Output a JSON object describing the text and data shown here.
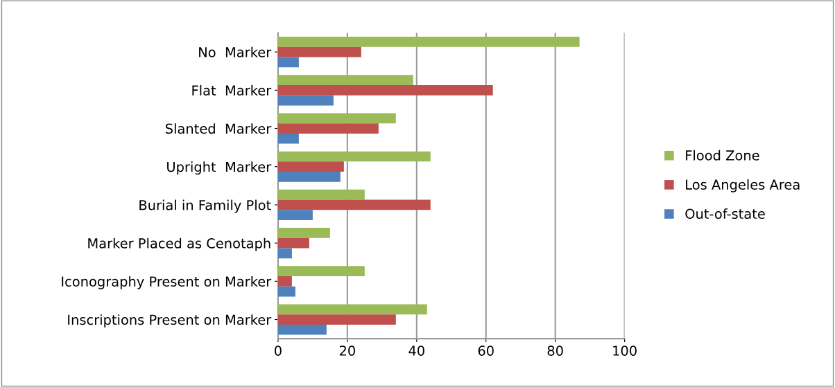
{
  "chart_data": {
    "type": "bar",
    "orientation": "horizontal",
    "categories": [
      "No  Marker",
      "Flat  Marker",
      "Slanted  Marker",
      "Upright  Marker",
      "Burial in Family Plot",
      "Marker Placed as Cenotaph",
      "Iconography Present on Marker",
      "Inscriptions Present on Marker"
    ],
    "series": [
      {
        "name": "Flood Zone",
        "color": "#9bbb59",
        "values": [
          87,
          39,
          34,
          44,
          25,
          15,
          25,
          43
        ]
      },
      {
        "name": "Los Angeles Area",
        "color": "#c0504d",
        "values": [
          24,
          62,
          29,
          19,
          44,
          9,
          4,
          34
        ]
      },
      {
        "name": "Out-of-state",
        "color": "#4f81bd",
        "values": [
          6,
          16,
          6,
          18,
          10,
          4,
          5,
          14
        ]
      }
    ],
    "xlim": [
      0,
      100
    ],
    "xticks": [
      0,
      20,
      40,
      60,
      80,
      100
    ],
    "grid": "x",
    "legend": "right"
  }
}
